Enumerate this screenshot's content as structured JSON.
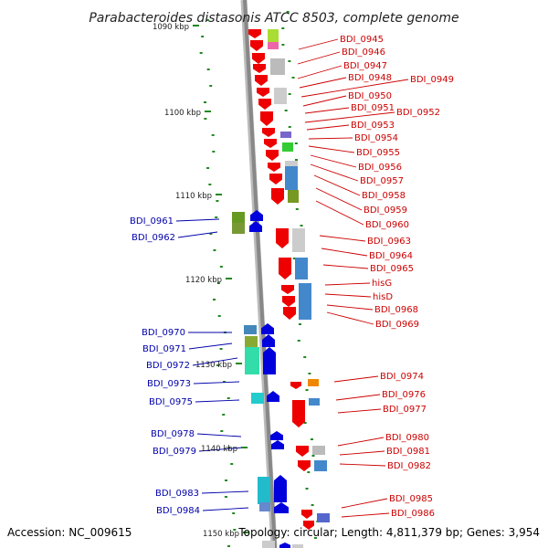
{
  "title": "Parabacteroides distasonis ATCC 8503, complete genome",
  "footer": {
    "accession": "Accession: NC_009615",
    "topology": "Topology: circular; Length: 4,811,379 bp; Genes: 3,954"
  },
  "scale_labels": [
    "1090 kbp",
    "1100 kbp",
    "1110 kbp",
    "1120 kbp",
    "1130 kbp",
    "1140 kbp",
    "1150 kbp"
  ],
  "right_genes": [
    "BDI_0945",
    "BDI_0946",
    "BDI_0947",
    "BDI_0948",
    "BDI_0949",
    "BDI_0950",
    "BDI_0951",
    "BDI_0952",
    "BDI_0953",
    "BDI_0954",
    "BDI_0955",
    "BDI_0956",
    "BDI_0957",
    "BDI_0958",
    "BDI_0959",
    "BDI_0960",
    "BDI_0963",
    "BDI_0964",
    "BDI_0965",
    "hisG",
    "hisD",
    "BDI_0968",
    "BDI_0969",
    "BDI_0974",
    "BDI_0976",
    "BDI_0977",
    "BDI_0980",
    "BDI_0981",
    "BDI_0982",
    "BDI_0985",
    "BDI_0986"
  ],
  "left_genes": [
    "BDI_0961",
    "BDI_0962",
    "BDI_0970",
    "BDI_0971",
    "BDI_0972",
    "BDI_0973",
    "BDI_0975",
    "BDI_0978",
    "BDI_0979",
    "BDI_0983",
    "BDI_0984"
  ],
  "colors": {
    "right_strand_gene": "#ee0000",
    "left_strand_gene": "#0000dd",
    "right_label": "#cc0000",
    "left_label": "#0000aa",
    "backbone": "#888888",
    "gc_dots": "#228822"
  }
}
